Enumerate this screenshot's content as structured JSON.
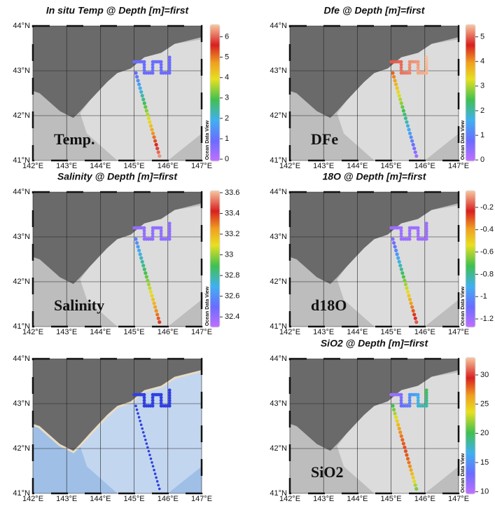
{
  "axes": {
    "lon_ticks": [
      "142°E",
      "143°E",
      "144°E",
      "145°E",
      "146°E",
      "147°E"
    ],
    "lat_ticks": [
      "44°N",
      "43°N",
      "42°N",
      "41°N"
    ],
    "lon_lim": [
      142,
      147
    ],
    "lat_lim": [
      41,
      44
    ]
  },
  "colorbar_note": "Ocean Data View",
  "panels": [
    {
      "title": "In situ Temp @ Depth [m]=first",
      "label": "Temp.",
      "colorbar": {
        "lim": [
          -0.1,
          6.6
        ],
        "ticks": [
          0,
          1,
          2,
          3,
          4,
          5,
          6
        ]
      }
    },
    {
      "title": "Dfe @ Depth [m]=first",
      "label": "DFe",
      "colorbar": {
        "lim": [
          -0.05,
          5.5
        ],
        "ticks": [
          0,
          1,
          2,
          3,
          4,
          5
        ]
      }
    },
    {
      "title": "Salinity @ Depth [m]=first",
      "label": "Salinity",
      "colorbar": {
        "lim": [
          32.3,
          33.62
        ],
        "ticks": [
          32.4,
          32.6,
          32.8,
          33,
          33.2,
          33.4,
          33.6
        ]
      }
    },
    {
      "title": "18O @ Depth [m]=first",
      "label": "d18O",
      "colorbar": {
        "lim": [
          -1.275,
          -0.05
        ],
        "ticks": [
          -1.2,
          -1,
          -0.8,
          -0.6,
          -0.4,
          -0.2
        ]
      }
    },
    {
      "title": "SiO2 @ Depth [m]=first",
      "label": "SiO2",
      "colorbar": {
        "lim": [
          9.6,
          33
        ],
        "ticks": [
          10,
          15,
          20,
          25,
          30
        ]
      }
    }
  ]
}
